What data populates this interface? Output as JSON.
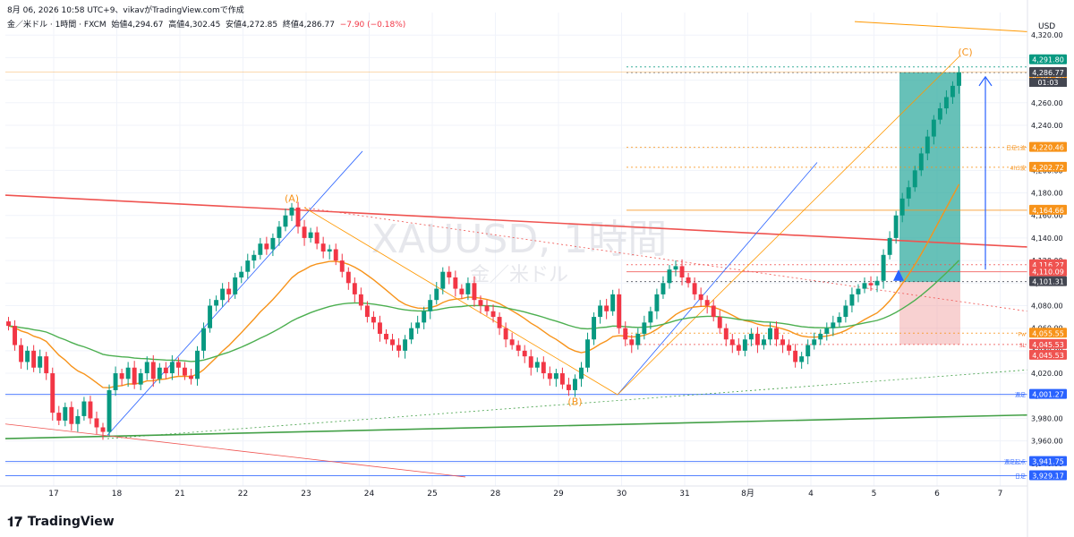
{
  "header": {
    "top_line": "8月 06, 2026 10:58 UTC+9、vikavがTradingView.comで作成",
    "symbol": "金／米ドル · 1時間 · FXCM",
    "open_label": "始値",
    "open": "4,294.67",
    "high_label": "高値",
    "high": "4,302.45",
    "low_label": "安値",
    "low": "4,272.85",
    "close_label": "終値",
    "close": "4,286.77",
    "change": "−7.90 (−0.18%)"
  },
  "watermark": {
    "symbol": "XAUUSD, 1時間",
    "name": "金／米ドル"
  },
  "footer": {
    "logo_icon": "tradingview-logo-icon",
    "brand": "TradingView"
  },
  "colors": {
    "up": "#089981",
    "down": "#f23645",
    "ema_fast": "#f7931a",
    "ema_green": "#4caf50",
    "trend_red": "#ef5350",
    "trend_green": "#43a047",
    "orange_line": "#ff9800",
    "blue_line": "#2962ff",
    "long_profit": "#26a69a",
    "long_loss": "#ef9a9a"
  },
  "chart_data": {
    "type": "candlestick",
    "symbol": "XAUUSD",
    "timeframe": "1時間",
    "currency_label": "USD",
    "ylim": [
      3920,
      4340
    ],
    "y_ticks": [
      "4,320.00",
      "4,300.00",
      "4,280.00",
      "4,260.00",
      "4,240.00",
      "4,220.00",
      "4,200.00",
      "4,180.00",
      "4,160.00",
      "4,140.00",
      "4,120.00",
      "4,100.00",
      "4,080.00",
      "4,060.00",
      "4,040.00",
      "4,020.00",
      "4,000.00",
      "3,980.00",
      "3,960.00",
      "3,940.00"
    ],
    "x_ticks": [
      "17",
      "18",
      "21",
      "22",
      "23",
      "24",
      "25",
      "28",
      "29",
      "30",
      "31",
      "8月",
      "4",
      "5",
      "6",
      "7"
    ],
    "close_path": [
      4062,
      4045,
      4030,
      4040,
      4025,
      4035,
      4020,
      3985,
      3978,
      3990,
      3975,
      3982,
      3995,
      3980,
      3972,
      3968,
      4005,
      4020,
      4015,
      4025,
      4010,
      4020,
      4030,
      4015,
      4025,
      4020,
      4030,
      4025,
      4018,
      4015,
      4040,
      4060,
      4080,
      4085,
      4095,
      4090,
      4105,
      4110,
      4120,
      4125,
      4135,
      4130,
      4140,
      4150,
      4160,
      4167,
      4150,
      4140,
      4145,
      4135,
      4128,
      4130,
      4120,
      4110,
      4100,
      4090,
      4080,
      4070,
      4065,
      4055,
      4050,
      4045,
      4040,
      4050,
      4060,
      4065,
      4075,
      4085,
      4095,
      4110,
      4105,
      4095,
      4090,
      4100,
      4085,
      4080,
      4075,
      4070,
      4060,
      4050,
      4045,
      4040,
      4035,
      4025,
      4030,
      4020,
      4015,
      4020,
      4010,
      4005,
      4015,
      4025,
      4050,
      4070,
      4080,
      4075,
      4090,
      4060,
      4050,
      4045,
      4055,
      4065,
      4075,
      4090,
      4100,
      4112,
      4115,
      4105,
      4100,
      4090,
      4085,
      4080,
      4070,
      4060,
      4050,
      4045,
      4040,
      4050,
      4055,
      4045,
      4050,
      4060,
      4050,
      4045,
      4040,
      4030,
      4035,
      4045,
      4050,
      4055,
      4060,
      4065,
      4070,
      4080,
      4090,
      4095,
      4100,
      4098,
      4102,
      4125,
      4140,
      4160,
      4175,
      4185,
      4200,
      4215,
      4230,
      4245,
      4255,
      4265,
      4275,
      4287
    ],
    "moving_averages": [
      {
        "color_key": "ema_fast",
        "period": 20
      },
      {
        "color_key": "ema_green",
        "period": 60
      }
    ],
    "price_labels": [
      {
        "value": 4291.8,
        "label": "4,291.80",
        "bg": "#089981"
      },
      {
        "value": 4291.8,
        "label": "4,291.80",
        "bg": "#f7931a",
        "offset": 12
      },
      {
        "value": 4286.77,
        "label": "4,286.77",
        "bg": "#434651"
      },
      {
        "value": 4220.46,
        "label": "4,220.46",
        "bg": "#f7931a",
        "tag": "日足1波"
      },
      {
        "value": 4202.72,
        "label": "4,202.72",
        "bg": "#f7931a",
        "tag": "4h3波"
      },
      {
        "value": 4164.66,
        "label": "4,164.66",
        "bg": "#f7931a"
      },
      {
        "value": 4116.27,
        "label": "4,116.27",
        "bg": "#ef5350"
      },
      {
        "value": 4110.09,
        "label": "4,110.09",
        "bg": "#ef5350"
      },
      {
        "value": 4101.31,
        "label": "4,101.31",
        "bg": "#434651"
      },
      {
        "value": 4055.55,
        "label": "4,055.55",
        "bg": "#f7931a",
        "tag": "Pw"
      },
      {
        "value": 4045.53,
        "label": "4,045.53",
        "bg": "#ef5350",
        "tag": "SL"
      },
      {
        "value": 4045.53,
        "label": "4,045.53",
        "bg": "#ef5350",
        "offset": 12
      },
      {
        "value": 4001.27,
        "label": "4,001.27",
        "bg": "#2962ff",
        "tag": "週足"
      },
      {
        "value": 3941.75,
        "label": "3,941.75",
        "bg": "#2962ff",
        "tag": "週足起点"
      },
      {
        "value": 3929.17,
        "label": "3,929.17",
        "bg": "#2962ff",
        "tag": "日足"
      }
    ],
    "countdown": "01:03",
    "wave_labels": [
      {
        "text": "(A)",
        "x_index": 45,
        "value": 4172
      },
      {
        "text": "(B)",
        "x_index": 90,
        "value": 3992
      },
      {
        "text": "(C)",
        "x_index": 152,
        "value": 4302
      }
    ]
  }
}
